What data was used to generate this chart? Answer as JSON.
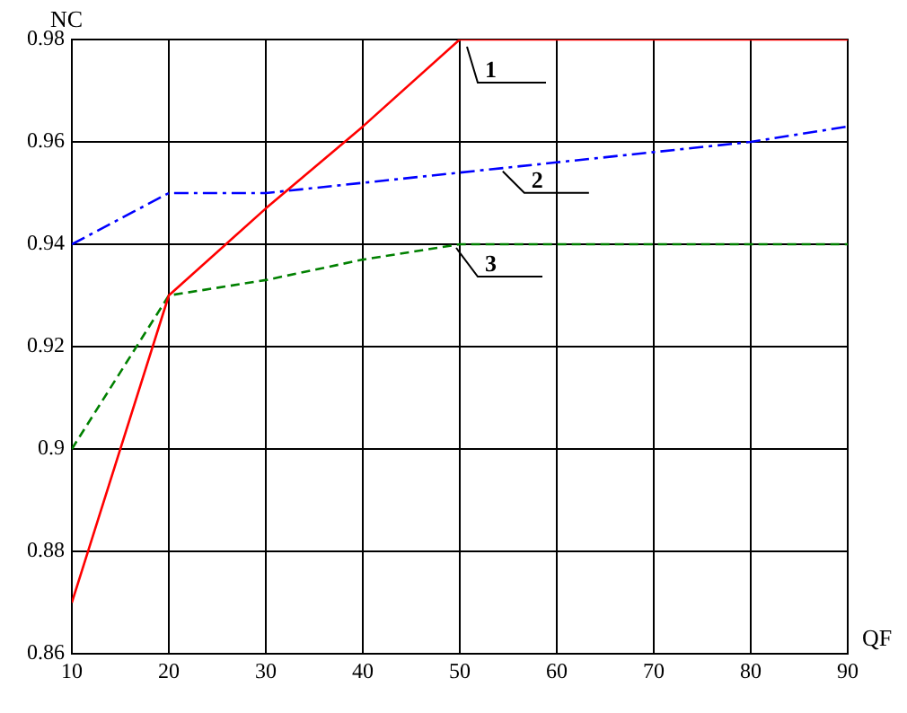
{
  "chart_data": {
    "type": "line",
    "xlabel": "QF",
    "ylabel": "NC",
    "x": [
      10,
      20,
      30,
      40,
      50,
      60,
      70,
      80,
      90
    ],
    "series": [
      {
        "name": "1",
        "color": "#ff0000",
        "line_style": "solid",
        "values": [
          0.87,
          0.93,
          0.947,
          0.963,
          0.98,
          0.98,
          0.98,
          0.98,
          0.98
        ]
      },
      {
        "name": "2",
        "color": "#0000ff",
        "line_style": "dashdot",
        "values": [
          0.94,
          0.95,
          0.95,
          0.952,
          0.954,
          0.956,
          0.958,
          0.96,
          0.963
        ]
      },
      {
        "name": "3",
        "color": "#008000",
        "line_style": "dashed",
        "values": [
          0.9,
          0.93,
          0.933,
          0.937,
          0.94,
          0.94,
          0.94,
          0.94,
          0.94
        ]
      }
    ],
    "xlim": [
      10,
      90
    ],
    "xticks": [
      10,
      20,
      30,
      40,
      50,
      60,
      70,
      80,
      90
    ],
    "ylim": [
      0.86,
      0.98
    ],
    "yticks": [
      {
        "value": 0.86,
        "label": "0.86"
      },
      {
        "value": 0.88,
        "label": "0.88"
      },
      {
        "value": 0.9,
        "label": "0.9"
      },
      {
        "value": 0.92,
        "label": "0.92"
      },
      {
        "value": 0.94,
        "label": "0.94"
      },
      {
        "value": 0.96,
        "label": "0.96"
      },
      {
        "value": 0.98,
        "label": "0.98"
      }
    ],
    "grid": true,
    "legend": false,
    "marker": "none"
  }
}
